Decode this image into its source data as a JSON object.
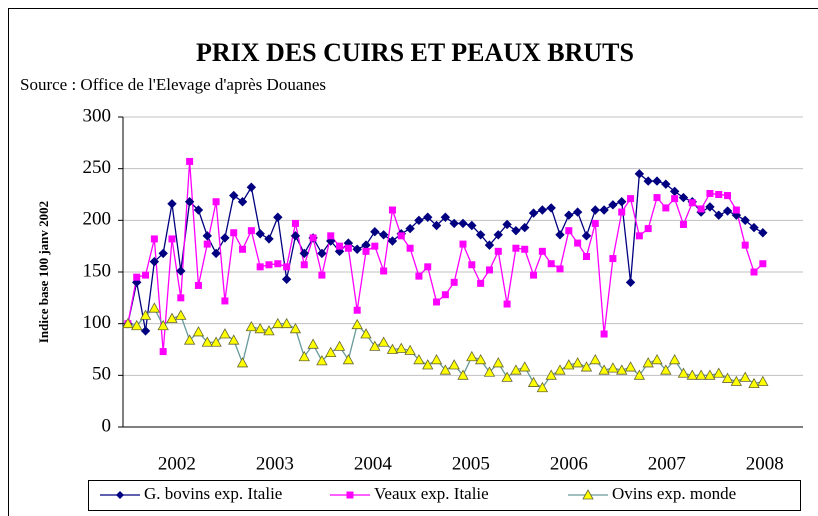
{
  "chart_data": {
    "type": "line",
    "title": "PRIX DES CUIRS ET PEAUX BRUTS",
    "subtitle": "Source : Office de l'Elevage d'après Douanes",
    "y_label": "Indice base 100 janv 2002",
    "x": [
      2002,
      2002.09,
      2002.18,
      2002.27,
      2002.36,
      2002.45,
      2002.54,
      2002.63,
      2002.72,
      2002.81,
      2002.9,
      2002.99,
      2003.08,
      2003.17,
      2003.26,
      2003.35,
      2003.44,
      2003.53,
      2003.62,
      2003.71,
      2003.8,
      2003.89,
      2003.98,
      2004.07,
      2004.16,
      2004.25,
      2004.34,
      2004.43,
      2004.52,
      2004.61,
      2004.7,
      2004.79,
      2004.88,
      2004.97,
      2005.06,
      2005.15,
      2005.24,
      2005.33,
      2005.42,
      2005.51,
      2005.6,
      2005.69,
      2005.78,
      2005.87,
      2005.96,
      2006.05,
      2006.14,
      2006.23,
      2006.32,
      2006.41,
      2006.5,
      2006.59,
      2006.68,
      2006.77,
      2006.86,
      2006.95,
      2007.04,
      2007.13,
      2007.22,
      2007.31,
      2007.4,
      2007.49,
      2007.58,
      2007.67,
      2007.76,
      2007.85,
      2007.94,
      2008.03,
      2008.12,
      2008.21,
      2008.3,
      2008.39,
      2008.48
    ],
    "series": [
      {
        "name": "G. bovins exp. Italie",
        "color": "#000080",
        "marker": "diamond",
        "values": [
          100,
          140,
          93,
          160,
          168,
          216,
          151,
          218,
          210,
          185,
          168,
          183,
          224,
          218,
          232,
          187,
          182,
          203,
          143,
          185,
          168,
          183,
          168,
          180,
          170,
          178,
          172,
          176,
          189,
          186,
          180,
          187,
          192,
          200,
          203,
          195,
          203,
          197,
          197,
          195,
          186,
          176,
          186,
          196,
          190,
          193,
          207,
          210,
          212,
          186,
          205,
          208,
          185,
          210,
          210,
          215,
          218,
          140,
          245,
          238,
          238,
          235,
          228,
          222,
          218,
          208,
          213,
          205,
          209,
          205,
          200,
          193,
          188
        ]
      },
      {
        "name": "Veaux exp. Italie",
        "color": "#ff00ff",
        "marker": "square",
        "values": [
          100,
          145,
          147,
          182,
          73,
          182,
          125,
          257,
          137,
          177,
          218,
          122,
          188,
          172,
          190,
          155,
          157,
          158,
          155,
          197,
          157,
          183,
          147,
          185,
          175,
          173,
          113,
          170,
          175,
          151,
          210,
          185,
          173,
          146,
          155,
          121,
          128,
          140,
          177,
          157,
          139,
          152,
          170,
          119,
          173,
          172,
          147,
          170,
          158,
          153,
          190,
          178,
          165,
          197,
          90,
          163,
          208,
          221,
          185,
          192,
          222,
          212,
          221,
          196,
          217,
          211,
          226,
          225,
          224,
          210,
          176,
          150,
          158
        ]
      },
      {
        "name": "Ovins exp. monde",
        "color": "#669999",
        "marker": "triangle",
        "marker_color": "#ffff00",
        "values": [
          100,
          98,
          108,
          115,
          98,
          105,
          108,
          84,
          92,
          82,
          82,
          90,
          84,
          62,
          97,
          95,
          93,
          100,
          100,
          95,
          68,
          80,
          64,
          72,
          78,
          65,
          99,
          90,
          78,
          82,
          75,
          76,
          74,
          65,
          60,
          65,
          55,
          60,
          50,
          68,
          65,
          53,
          62,
          48,
          55,
          58,
          43,
          38,
          50,
          55,
          60,
          62,
          58,
          65,
          55,
          57,
          55,
          58,
          50,
          62,
          65,
          55,
          65,
          52,
          50,
          50,
          50,
          52,
          47,
          44,
          48,
          42,
          44
        ]
      }
    ],
    "xlim": [
      2001.95,
      2008.89
    ],
    "xticks": [
      {
        "value": 2002.5,
        "label": "2002"
      },
      {
        "value": 2003.5,
        "label": "2003"
      },
      {
        "value": 2004.5,
        "label": "2004"
      },
      {
        "value": 2005.5,
        "label": "2005"
      },
      {
        "value": 2006.5,
        "label": "2006"
      },
      {
        "value": 2007.5,
        "label": "2007"
      },
      {
        "value": 2008.5,
        "label": "2008"
      }
    ],
    "ylim": [
      0,
      300
    ],
    "yticks": [
      0,
      50,
      100,
      150,
      200,
      250,
      300
    ],
    "grid": true,
    "legend": "bottom"
  }
}
